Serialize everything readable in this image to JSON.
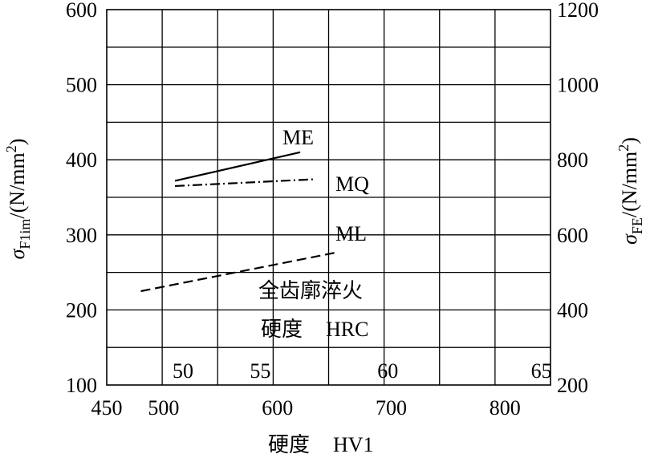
{
  "chart_data": {
    "type": "line",
    "x_axis": {
      "label_cjk": "硬度",
      "label_unit": "HV1",
      "min": 450,
      "max": 840,
      "ticks": [
        450,
        500,
        600,
        700,
        800
      ]
    },
    "y_left": {
      "label_main": "σ",
      "label_sub": "F1im",
      "label_unit": "/(N/mm",
      "label_sup": "2",
      "label_close": ")",
      "min": 100,
      "max": 600,
      "ticks": [
        100,
        200,
        300,
        400,
        500,
        600
      ]
    },
    "y_right": {
      "label_main": "σ",
      "label_sub": "FE",
      "label_unit": "/(N/mm",
      "label_sup": "2",
      "label_close": ")",
      "min": 200,
      "max": 1200,
      "ticks": [
        200,
        400,
        600,
        800,
        1000,
        1200
      ]
    },
    "grid": true,
    "hrc_scale": [
      {
        "label": "50",
        "hv": 517
      },
      {
        "label": "55",
        "hv": 585
      },
      {
        "label": "60",
        "hv": 697
      },
      {
        "label": "65",
        "hv": 832
      }
    ],
    "series": [
      {
        "name": "ME",
        "style": "solid",
        "x": [
          510,
          620
        ],
        "y": [
          372,
          410
        ]
      },
      {
        "name": "MQ",
        "style": "dashdot",
        "x": [
          510,
          632
        ],
        "y": [
          365,
          374
        ]
      },
      {
        "name": "ML",
        "style": "dashed",
        "x": [
          480,
          650
        ],
        "y": [
          225,
          276
        ]
      }
    ],
    "annotations": {
      "process": "全齿廓淬火",
      "hrc_label_cjk": "硬度",
      "hrc_label_unit": "HRC"
    }
  }
}
